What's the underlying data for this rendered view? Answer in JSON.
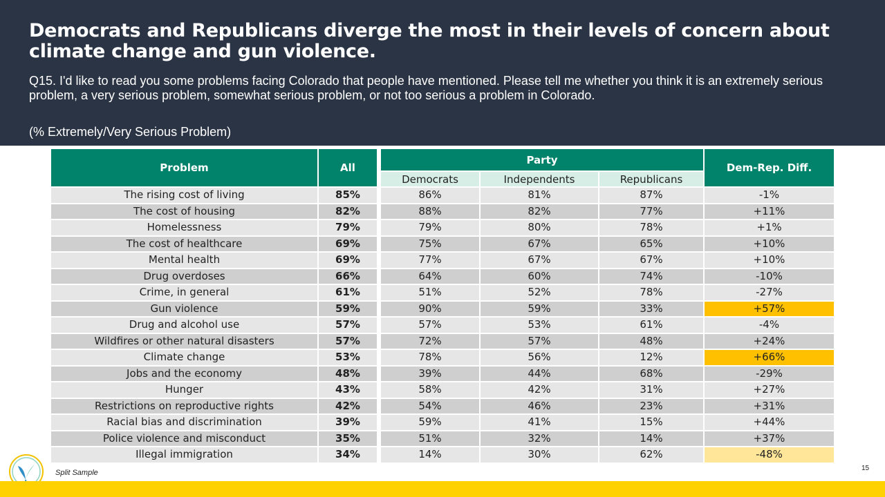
{
  "title": "Democrats and Republicans diverge the most in their levels of concern about climate change and gun violence.",
  "question": "Q15. I'd like to read you some problems facing Colorado that people have mentioned.  Please tell me whether you think it is an extremely serious problem, a very serious problem, somewhat serious problem, or not too serious a problem in Colorado.",
  "note": "(% Extremely/Very Serious Problem)",
  "table": {
    "headers": {
      "problem": "Problem",
      "all": "All",
      "party": "Party",
      "democrats": "Democrats",
      "independents": "Independents",
      "republicans": "Republicans",
      "diff": "Dem-Rep. Diff."
    },
    "rows": [
      {
        "problem": "The rising cost of living",
        "all": "85%",
        "dem": "86%",
        "ind": "81%",
        "rep": "87%",
        "diff": "-1%",
        "highlight": ""
      },
      {
        "problem": "The cost of housing",
        "all": "82%",
        "dem": "88%",
        "ind": "82%",
        "rep": "77%",
        "diff": "+11%",
        "highlight": ""
      },
      {
        "problem": "Homelessness",
        "all": "79%",
        "dem": "79%",
        "ind": "80%",
        "rep": "78%",
        "diff": "+1%",
        "highlight": ""
      },
      {
        "problem": "The cost of healthcare",
        "all": "69%",
        "dem": "75%",
        "ind": "67%",
        "rep": "65%",
        "diff": "+10%",
        "highlight": ""
      },
      {
        "problem": "Mental health",
        "all": "69%",
        "dem": "77%",
        "ind": "67%",
        "rep": "67%",
        "diff": "+10%",
        "highlight": ""
      },
      {
        "problem": "Drug overdoses",
        "all": "66%",
        "dem": "64%",
        "ind": "60%",
        "rep": "74%",
        "diff": "-10%",
        "highlight": ""
      },
      {
        "problem": "Crime, in general",
        "all": "61%",
        "dem": "51%",
        "ind": "52%",
        "rep": "78%",
        "diff": "-27%",
        "highlight": ""
      },
      {
        "problem": "Gun violence",
        "all": "59%",
        "dem": "90%",
        "ind": "59%",
        "rep": "33%",
        "diff": "+57%",
        "highlight": "strong"
      },
      {
        "problem": "Drug and alcohol use",
        "all": "57%",
        "dem": "57%",
        "ind": "53%",
        "rep": "61%",
        "diff": "-4%",
        "highlight": ""
      },
      {
        "problem": "Wildfires or other natural disasters",
        "all": "57%",
        "dem": "72%",
        "ind": "57%",
        "rep": "48%",
        "diff": "+24%",
        "highlight": ""
      },
      {
        "problem": "Climate change",
        "all": "53%",
        "dem": "78%",
        "ind": "56%",
        "rep": "12%",
        "diff": "+66%",
        "highlight": "strong"
      },
      {
        "problem": "Jobs and the economy",
        "all": "48%",
        "dem": "39%",
        "ind": "44%",
        "rep": "68%",
        "diff": "-29%",
        "highlight": ""
      },
      {
        "problem": "Hunger",
        "all": "43%",
        "dem": "58%",
        "ind": "42%",
        "rep": "31%",
        "diff": "+27%",
        "highlight": ""
      },
      {
        "problem": "Restrictions on reproductive rights",
        "all": "42%",
        "dem": "54%",
        "ind": "46%",
        "rep": "23%",
        "diff": "+31%",
        "highlight": ""
      },
      {
        "problem": "Racial bias and discrimination",
        "all": "39%",
        "dem": "59%",
        "ind": "41%",
        "rep": "15%",
        "diff": "+44%",
        "highlight": ""
      },
      {
        "problem": "Police violence and misconduct",
        "all": "35%",
        "dem": "51%",
        "ind": "32%",
        "rep": "14%",
        "diff": "+37%",
        "highlight": ""
      },
      {
        "problem": "Illegal immigration",
        "all": "34%",
        "dem": "14%",
        "ind": "30%",
        "rep": "62%",
        "diff": "-48%",
        "highlight": "light"
      }
    ]
  },
  "footer": {
    "split_sample": "Split Sample",
    "page_number": "15"
  },
  "colors": {
    "header_bg": "#2b3444",
    "table_header": "#00836a",
    "subheader": "#d7eee7",
    "highlight_strong": "#ffc000",
    "highlight_light": "#ffe699",
    "footer_bar": "#ffd100"
  },
  "icons": {
    "logo": "leaf-logo-icon"
  }
}
